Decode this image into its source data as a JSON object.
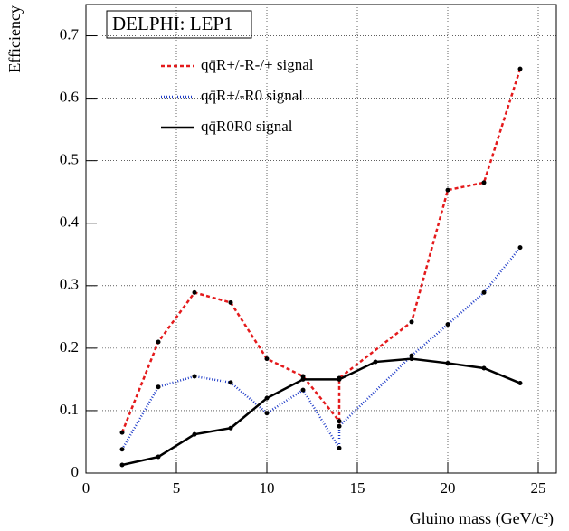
{
  "chart_data": {
    "type": "line",
    "title": "DELPHI: LEP1",
    "x_label": "Gluino mass (GeV/c²)",
    "y_label": "Efficiency",
    "xlim": [
      0,
      26
    ],
    "ylim": [
      0,
      0.75
    ],
    "xticks": [
      0,
      5,
      10,
      15,
      20,
      25
    ],
    "yticks": [
      0,
      0.1,
      0.2,
      0.3,
      0.4,
      0.5,
      0.6,
      0.7
    ],
    "grid": true,
    "series": [
      {
        "name": "qq̄R+/-R-/+ signal",
        "color": "#e41a1c",
        "dash": "4,3",
        "x": [
          2,
          4,
          6,
          8,
          10,
          12,
          14,
          14,
          18,
          20,
          22,
          24
        ],
        "values": [
          0.065,
          0.21,
          0.289,
          0.273,
          0.183,
          0.155,
          0.083,
          0.152,
          0.242,
          0.453,
          0.465,
          0.647
        ]
      },
      {
        "name": "qq̄R+/-R0 signal",
        "color": "#1f3cc8",
        "dash": "1,2",
        "x": [
          2,
          4,
          6,
          8,
          10,
          12,
          14,
          14,
          18,
          20,
          22,
          24
        ],
        "values": [
          0.038,
          0.138,
          0.155,
          0.145,
          0.096,
          0.133,
          0.04,
          0.075,
          0.188,
          0.238,
          0.289,
          0.361
        ]
      },
      {
        "name": "qq̄R0R0 signal",
        "color": "#000000",
        "dash": "none",
        "x": [
          2,
          4,
          6,
          8,
          10,
          12,
          14,
          16,
          18,
          20,
          22,
          24
        ],
        "values": [
          0.013,
          0.026,
          0.062,
          0.072,
          0.12,
          0.15,
          0.15,
          0.178,
          0.183,
          0.176,
          0.168,
          0.144
        ]
      }
    ]
  }
}
